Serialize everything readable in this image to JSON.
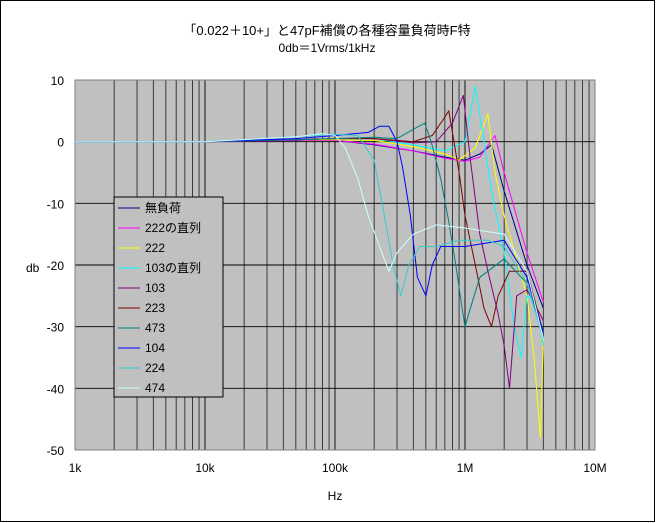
{
  "chart_data": {
    "type": "line",
    "title": "「0.022＋10+」と47pF補償の各種容量負荷時F特",
    "subtitle": "0db＝1Vrms/1kHz",
    "xlabel": "Hz",
    "ylabel": "db",
    "x_scale": "log",
    "xlim": [
      1000,
      10000000
    ],
    "ylim": [
      -50,
      10
    ],
    "x_ticks": [
      1000,
      10000,
      100000,
      1000000,
      10000000
    ],
    "x_tick_labels": [
      "1k",
      "10k",
      "100k",
      "1M",
      "10M"
    ],
    "y_ticks": [
      10,
      0,
      -10,
      -20,
      -30,
      -40,
      -50
    ],
    "y_tick_labels": [
      "10",
      "0",
      "-10",
      "-20",
      "-30",
      "-40",
      "-50"
    ],
    "grid": true,
    "legend_position": "left",
    "series": [
      {
        "name": "無負荷",
        "color": "#000080",
        "points": [
          [
            1000,
            0
          ],
          [
            10000,
            0
          ],
          [
            50000,
            0.2
          ],
          [
            100000,
            0.2
          ],
          [
            200000,
            -0.5
          ],
          [
            400000,
            -1.5
          ],
          [
            700000,
            -2.5
          ],
          [
            1000000,
            -3
          ],
          [
            1300000,
            -2
          ],
          [
            1600000,
            -0.5
          ],
          [
            2000000,
            -8
          ],
          [
            3000000,
            -20
          ],
          [
            4000000,
            -27
          ]
        ]
      },
      {
        "name": "222の直列",
        "color": "#ff00ff",
        "points": [
          [
            1000,
            0
          ],
          [
            10000,
            0
          ],
          [
            50000,
            0.2
          ],
          [
            100000,
            0.2
          ],
          [
            200000,
            -0.4
          ],
          [
            400000,
            -1.5
          ],
          [
            700000,
            -2.7
          ],
          [
            1000000,
            -3.2
          ],
          [
            1300000,
            -2.5
          ],
          [
            1700000,
            1
          ],
          [
            2000000,
            -5
          ],
          [
            3000000,
            -18
          ],
          [
            4000000,
            -26
          ]
        ]
      },
      {
        "name": "222",
        "color": "#ffff00",
        "points": [
          [
            1000,
            0
          ],
          [
            10000,
            0
          ],
          [
            50000,
            0.3
          ],
          [
            100000,
            0.3
          ],
          [
            200000,
            0.2
          ],
          [
            400000,
            -0.8
          ],
          [
            700000,
            -2
          ],
          [
            900000,
            -3
          ],
          [
            1200000,
            -1
          ],
          [
            1500000,
            4.5
          ],
          [
            1700000,
            -5
          ],
          [
            2000000,
            -12
          ],
          [
            3000000,
            -25
          ],
          [
            3400000,
            -35
          ],
          [
            3800000,
            -48
          ],
          [
            4000000,
            -32
          ]
        ]
      },
      {
        "name": "103の直列",
        "color": "#00ffff",
        "points": [
          [
            1000,
            0
          ],
          [
            10000,
            0
          ],
          [
            50000,
            0.3
          ],
          [
            100000,
            0.5
          ],
          [
            200000,
            0.5
          ],
          [
            400000,
            -0.5
          ],
          [
            700000,
            -1.5
          ],
          [
            1000000,
            0
          ],
          [
            1200000,
            9
          ],
          [
            1400000,
            0
          ],
          [
            1600000,
            -8
          ],
          [
            2000000,
            -18
          ],
          [
            2400000,
            -30
          ],
          [
            2700000,
            -35
          ],
          [
            3000000,
            -25
          ],
          [
            3500000,
            -26
          ],
          [
            4000000,
            -33
          ]
        ]
      },
      {
        "name": "103",
        "color": "#800080",
        "points": [
          [
            1000,
            0
          ],
          [
            10000,
            0
          ],
          [
            50000,
            0.3
          ],
          [
            100000,
            0.5
          ],
          [
            200000,
            0.5
          ],
          [
            400000,
            -0.2
          ],
          [
            600000,
            0
          ],
          [
            800000,
            3
          ],
          [
            970000,
            7.5
          ],
          [
            1100000,
            -3
          ],
          [
            1300000,
            -15
          ],
          [
            1500000,
            -21
          ],
          [
            1800000,
            -28
          ],
          [
            2000000,
            -33
          ],
          [
            2200000,
            -40
          ],
          [
            2500000,
            -25
          ],
          [
            3000000,
            -24
          ],
          [
            4000000,
            -29
          ]
        ]
      },
      {
        "name": "223",
        "color": "#800000",
        "points": [
          [
            1000,
            0
          ],
          [
            10000,
            0
          ],
          [
            50000,
            0.3
          ],
          [
            100000,
            0.5
          ],
          [
            200000,
            0.5
          ],
          [
            400000,
            0
          ],
          [
            560000,
            1
          ],
          [
            700000,
            4
          ],
          [
            750000,
            5
          ],
          [
            900000,
            -5
          ],
          [
            1000000,
            -12
          ],
          [
            1200000,
            -20
          ],
          [
            1400000,
            -27
          ],
          [
            1600000,
            -30
          ],
          [
            1800000,
            -25
          ],
          [
            2200000,
            -21
          ],
          [
            3000000,
            -21
          ],
          [
            4000000,
            -31
          ]
        ]
      },
      {
        "name": "473",
        "color": "#008080",
        "points": [
          [
            1000,
            0
          ],
          [
            10000,
            0
          ],
          [
            50000,
            0.3
          ],
          [
            100000,
            0.5
          ],
          [
            200000,
            0.7
          ],
          [
            300000,
            0.5
          ],
          [
            400000,
            2
          ],
          [
            490000,
            3
          ],
          [
            550000,
            0
          ],
          [
            650000,
            -6
          ],
          [
            750000,
            -13
          ],
          [
            850000,
            -20
          ],
          [
            950000,
            -27
          ],
          [
            1000000,
            -30
          ],
          [
            1100000,
            -27
          ],
          [
            1300000,
            -22
          ],
          [
            2000000,
            -19
          ],
          [
            3000000,
            -23
          ],
          [
            4000000,
            -31
          ]
        ]
      },
      {
        "name": "104",
        "color": "#0000ff",
        "points": [
          [
            1000,
            0
          ],
          [
            10000,
            0
          ],
          [
            50000,
            0.5
          ],
          [
            100000,
            1
          ],
          [
            180000,
            1.5
          ],
          [
            220000,
            2.5
          ],
          [
            260000,
            2.5
          ],
          [
            300000,
            0
          ],
          [
            330000,
            -4
          ],
          [
            380000,
            -12
          ],
          [
            430000,
            -22
          ],
          [
            500000,
            -25
          ],
          [
            560000,
            -20
          ],
          [
            650000,
            -17
          ],
          [
            1000000,
            -17
          ],
          [
            2000000,
            -16
          ],
          [
            3000000,
            -22
          ],
          [
            4000000,
            -31
          ]
        ]
      },
      {
        "name": "224",
        "color": "#33cccc",
        "points": [
          [
            1000,
            0
          ],
          [
            10000,
            0
          ],
          [
            50000,
            0.8
          ],
          [
            100000,
            1.2
          ],
          [
            150000,
            1
          ],
          [
            200000,
            -3
          ],
          [
            240000,
            -12
          ],
          [
            280000,
            -20
          ],
          [
            320000,
            -25
          ],
          [
            370000,
            -20
          ],
          [
            450000,
            -17
          ],
          [
            600000,
            -17
          ],
          [
            900000,
            -16
          ],
          [
            1500000,
            -16
          ],
          [
            2000000,
            -17
          ],
          [
            3000000,
            -23
          ],
          [
            4000000,
            -32
          ]
        ]
      },
      {
        "name": "474",
        "color": "#ccffff",
        "points": [
          [
            1000,
            0
          ],
          [
            10000,
            0
          ],
          [
            50000,
            0.8
          ],
          [
            80000,
            1.3
          ],
          [
            100000,
            1
          ],
          [
            120000,
            -1
          ],
          [
            150000,
            -6
          ],
          [
            180000,
            -12
          ],
          [
            220000,
            -17
          ],
          [
            260000,
            -21
          ],
          [
            300000,
            -18
          ],
          [
            400000,
            -15
          ],
          [
            600000,
            -13.5
          ],
          [
            1000000,
            -14
          ],
          [
            2000000,
            -15
          ],
          [
            3000000,
            -21
          ],
          [
            4000000,
            -32
          ]
        ]
      }
    ]
  }
}
